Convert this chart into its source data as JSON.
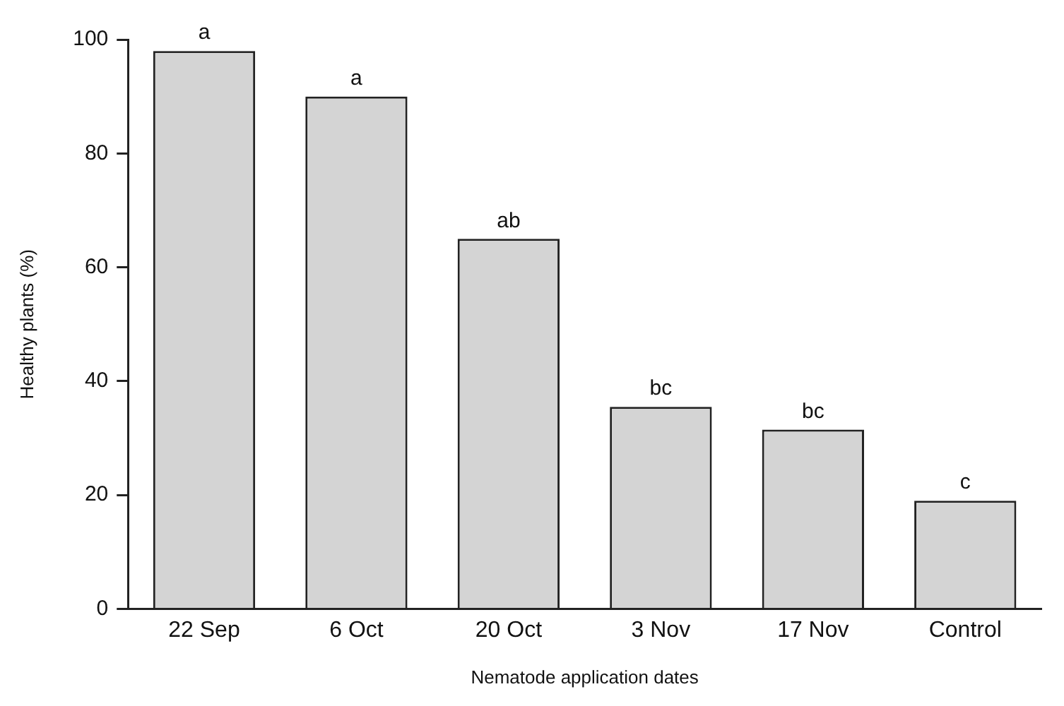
{
  "chart_data": {
    "type": "bar",
    "xlabel": "Nematode application dates",
    "ylabel": "Healthy plants (%)",
    "categories": [
      "22 Sep",
      "6 Oct",
      "20 Oct",
      "3 Nov",
      "17 Nov",
      "Control"
    ],
    "values": [
      98,
      90,
      65,
      35.5,
      31.5,
      19
    ],
    "color": "#d4d4d4",
    "ylim": [
      0,
      100
    ],
    "yticks": [
      0,
      20,
      40,
      60,
      80,
      100
    ],
    "grid": false,
    "legend": false,
    "annotations": [
      {
        "text": "a",
        "x": "22 Sep",
        "y": 98
      },
      {
        "text": "a",
        "x": "6 Oct",
        "y": 90
      },
      {
        "text": "ab",
        "x": "20 Oct",
        "y": 65
      },
      {
        "text": "bc",
        "x": "3 Nov",
        "y": 35.5
      },
      {
        "text": "bc",
        "x": "17 Nov",
        "y": 31.5
      },
      {
        "text": "c",
        "x": "Control",
        "y": 19
      }
    ]
  }
}
